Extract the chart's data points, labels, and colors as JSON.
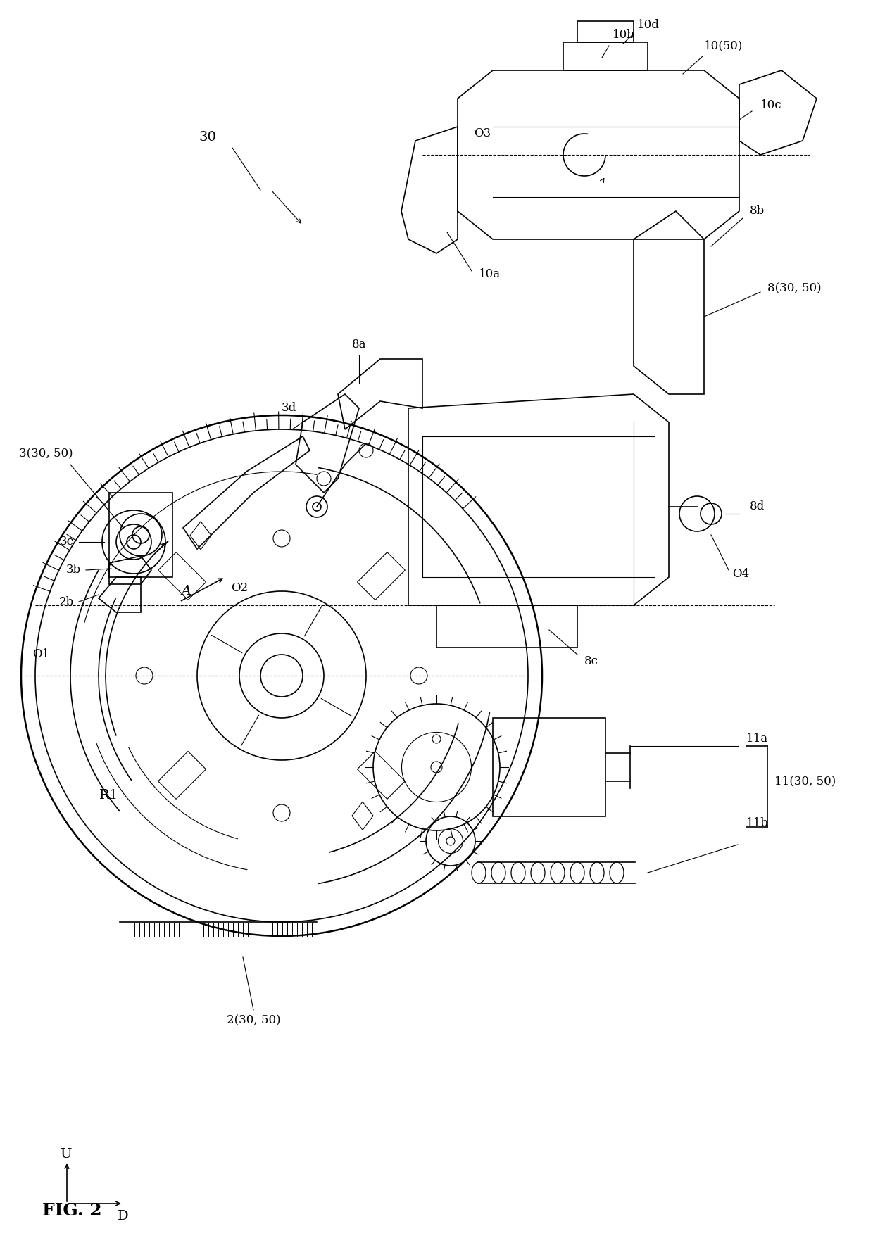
{
  "figure_label": "FIG. 2",
  "background_color": "#ffffff",
  "line_color": "#000000",
  "figsize": [
    12.4,
    17.86
  ],
  "dpi": 100,
  "labels": {
    "fig": "FIG. 2",
    "label_30": "30",
    "label_3_30_50": "3(30, 50)",
    "label_3c": "3c",
    "label_3b": "3b",
    "label_2b": "2b",
    "label_O1": "O1",
    "label_O2": "O2",
    "label_O3": "O3",
    "label_O4": "O4",
    "label_A": "A",
    "label_R1": "R1",
    "label_U": "U",
    "label_D": "D",
    "label_3d": "3d",
    "label_8a": "8a",
    "label_8b": "8b",
    "label_8c": "8c",
    "label_8d": "8d",
    "label_8_30_50": "8(30, 50)",
    "label_10a": "10a",
    "label_10b": "10b",
    "label_10c": "10c",
    "label_10d": "10d",
    "label_10_50": "10(50)",
    "label_11a": "11a",
    "label_11b": "11b",
    "label_11_30_50": "11(30, 50)",
    "label_2_30_50": "2(30, 50)"
  }
}
